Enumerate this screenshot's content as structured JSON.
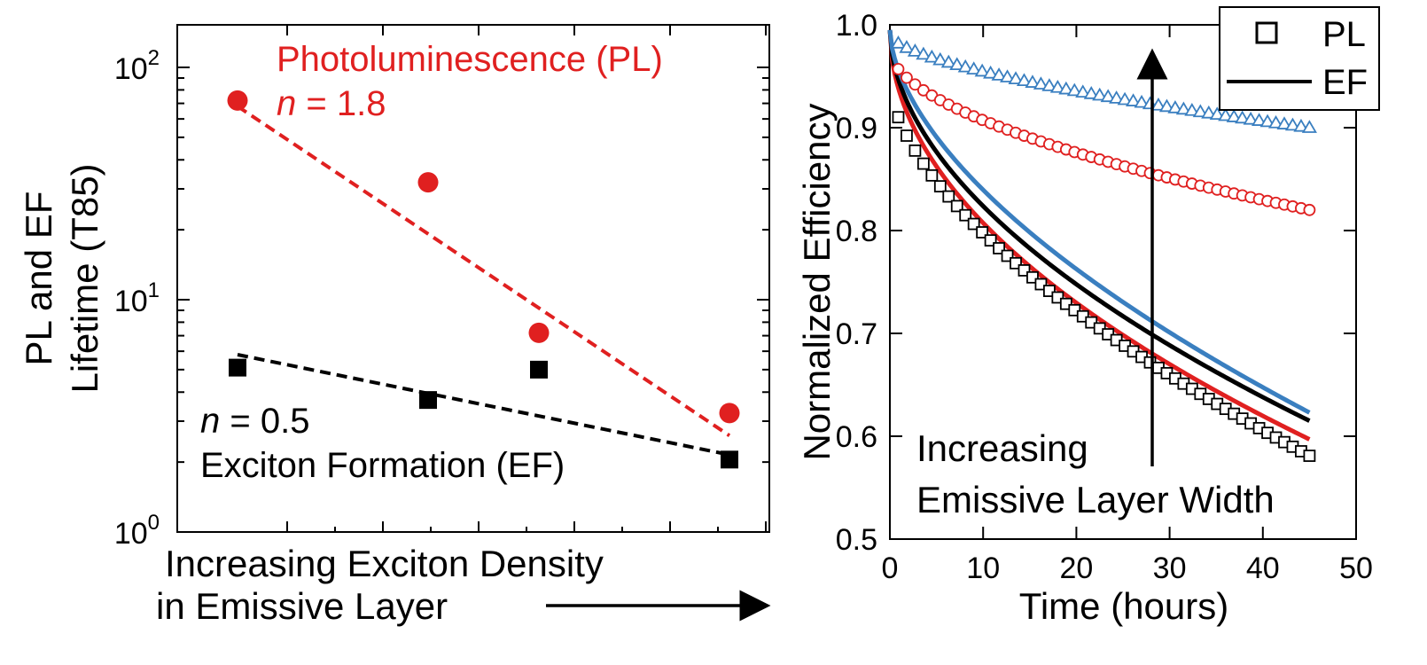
{
  "colors": {
    "red": "#e02020",
    "blue": "#3a7fc0",
    "black": "#000000"
  },
  "chart_data": [
    {
      "type": "scatter",
      "ylabel_line1": "PL and EF",
      "ylabel_line2": "Lifetime (T85)",
      "xlabel_line1": "Increasing Exciton Density",
      "xlabel_line2": "in Emissive Layer",
      "yscale": "log",
      "ylim": [
        1,
        150
      ],
      "y_ticks": [
        {
          "value": 100,
          "base": "10",
          "exp": "2"
        },
        {
          "value": 10,
          "base": "10",
          "exp": "1"
        },
        {
          "value": 1,
          "base": "10",
          "exp": "0"
        }
      ],
      "x": [
        1,
        2,
        3,
        4
      ],
      "series": [
        {
          "name": "Photoluminescence (PL)",
          "marker": "circle",
          "color": "#e02020",
          "values": [
            72,
            32,
            7.2,
            3.25
          ],
          "fit_label": "n = 1.8",
          "fit": [
            68,
            2.6
          ]
        },
        {
          "name": "Exciton Formation (EF)",
          "marker": "square",
          "color": "#000000",
          "values": [
            5.1,
            3.7,
            5.0,
            2.05
          ],
          "fit_label": "n = 0.5",
          "fit": [
            5.8,
            2.15
          ]
        }
      ],
      "annotations": {
        "pl_title": "Photoluminescence (PL)",
        "pl_n_var": "n",
        "pl_n_val": " = 1.8",
        "ef_n_var": "n",
        "ef_n_val": " = 0.5",
        "ef_title": "Exciton Formation (EF)"
      }
    },
    {
      "type": "line",
      "xlabel": "Time (hours)",
      "ylabel": "Normalized Efficiency",
      "xlim": [
        0,
        50
      ],
      "ylim": [
        0.5,
        1.0
      ],
      "x_ticks": [
        "0",
        "10",
        "20",
        "30",
        "40",
        "50"
      ],
      "y_ticks": [
        "0.5",
        "0.6",
        "0.7",
        "0.8",
        "0.9",
        "1.0"
      ],
      "legend": {
        "position": "top-right",
        "items": [
          "PL",
          "EF"
        ]
      },
      "annotation_line1": "Increasing",
      "annotation_line2": "Emissive Layer Width",
      "ef_curves": [
        {
          "color": "#e02020",
          "end_value": 0.597
        },
        {
          "color": "#000000",
          "end_value": 0.615
        },
        {
          "color": "#3a7fc0",
          "end_value": 0.623
        }
      ],
      "pl_curves": [
        {
          "marker": "square",
          "color": "#000000",
          "start_value": 0.945,
          "end_value": 0.581
        },
        {
          "marker": "circle",
          "color": "#e02020",
          "start_value": 0.975,
          "end_value": 0.82
        },
        {
          "marker": "triangle",
          "color": "#3a7fc0",
          "start_value": 0.99,
          "end_value": 0.9
        }
      ]
    }
  ]
}
